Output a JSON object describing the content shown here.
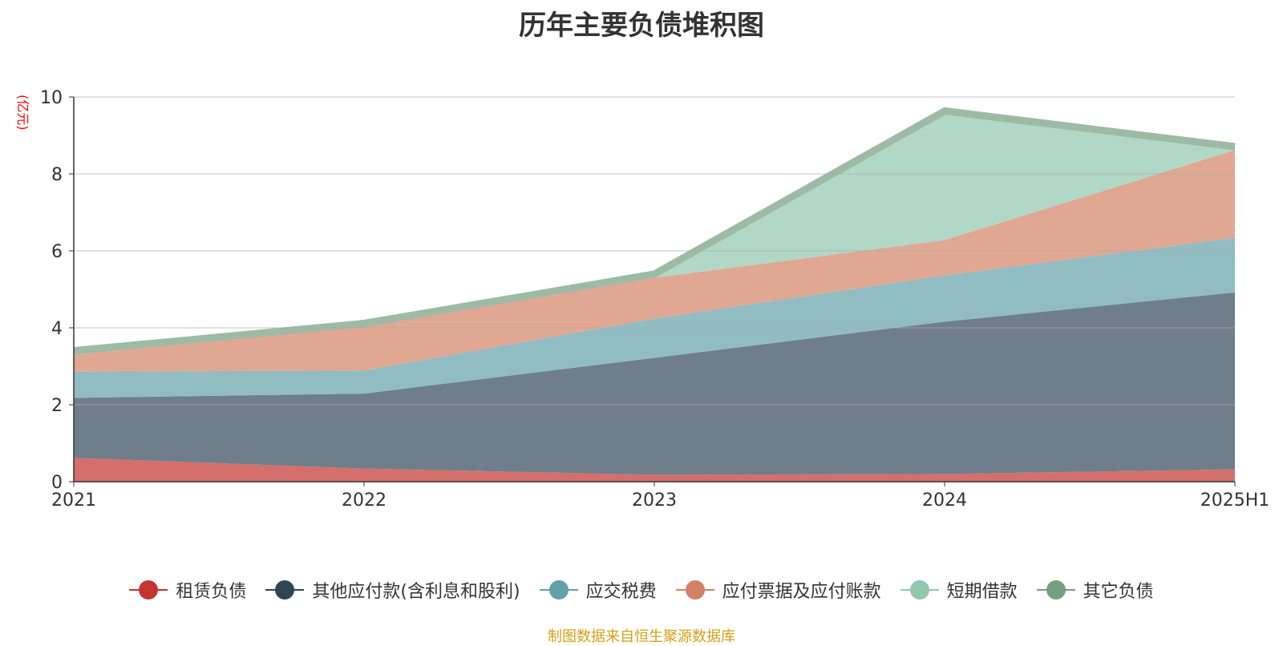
{
  "chart_data": {
    "type": "area",
    "title": "历年主要负债堆积图",
    "ylabel": "(亿元)",
    "categories": [
      "2021",
      "2022",
      "2023",
      "2024",
      "2025H1"
    ],
    "ylim": [
      0,
      10
    ],
    "yticks": [
      "0",
      "2",
      "4",
      "6",
      "8",
      "10"
    ],
    "grid": true,
    "legend_position": "bottom",
    "series": [
      {
        "name": "租赁负债",
        "color": "#c23531",
        "fill": "#d46f6c",
        "values": [
          0.62,
          0.34,
          0.18,
          0.2,
          0.32
        ]
      },
      {
        "name": "其他应付款(含利息和股利)",
        "color": "#2f4554",
        "fill": "#6f7e8a",
        "values": [
          1.56,
          1.95,
          3.04,
          3.96,
          4.6
        ]
      },
      {
        "name": "应交税费",
        "color": "#61a0a8",
        "fill": "#90bcc2",
        "values": [
          0.68,
          0.6,
          1.02,
          1.2,
          1.42
        ]
      },
      {
        "name": "应付票据及应付账款",
        "color": "#d48265",
        "fill": "#e0a792",
        "values": [
          0.44,
          1.14,
          1.06,
          0.92,
          2.28
        ]
      },
      {
        "name": "短期借款",
        "color": "#91c7ae",
        "fill": "#b1d8c6",
        "values": [
          0,
          0,
          0,
          3.26,
          0
        ]
      },
      {
        "name": "其它负债",
        "color": "#749f83",
        "fill": "#9dbaa5",
        "values": [
          0.2,
          0.17,
          0.19,
          0.19,
          0.18
        ]
      }
    ]
  },
  "source_note": "制图数据来自恒生聚源数据库"
}
